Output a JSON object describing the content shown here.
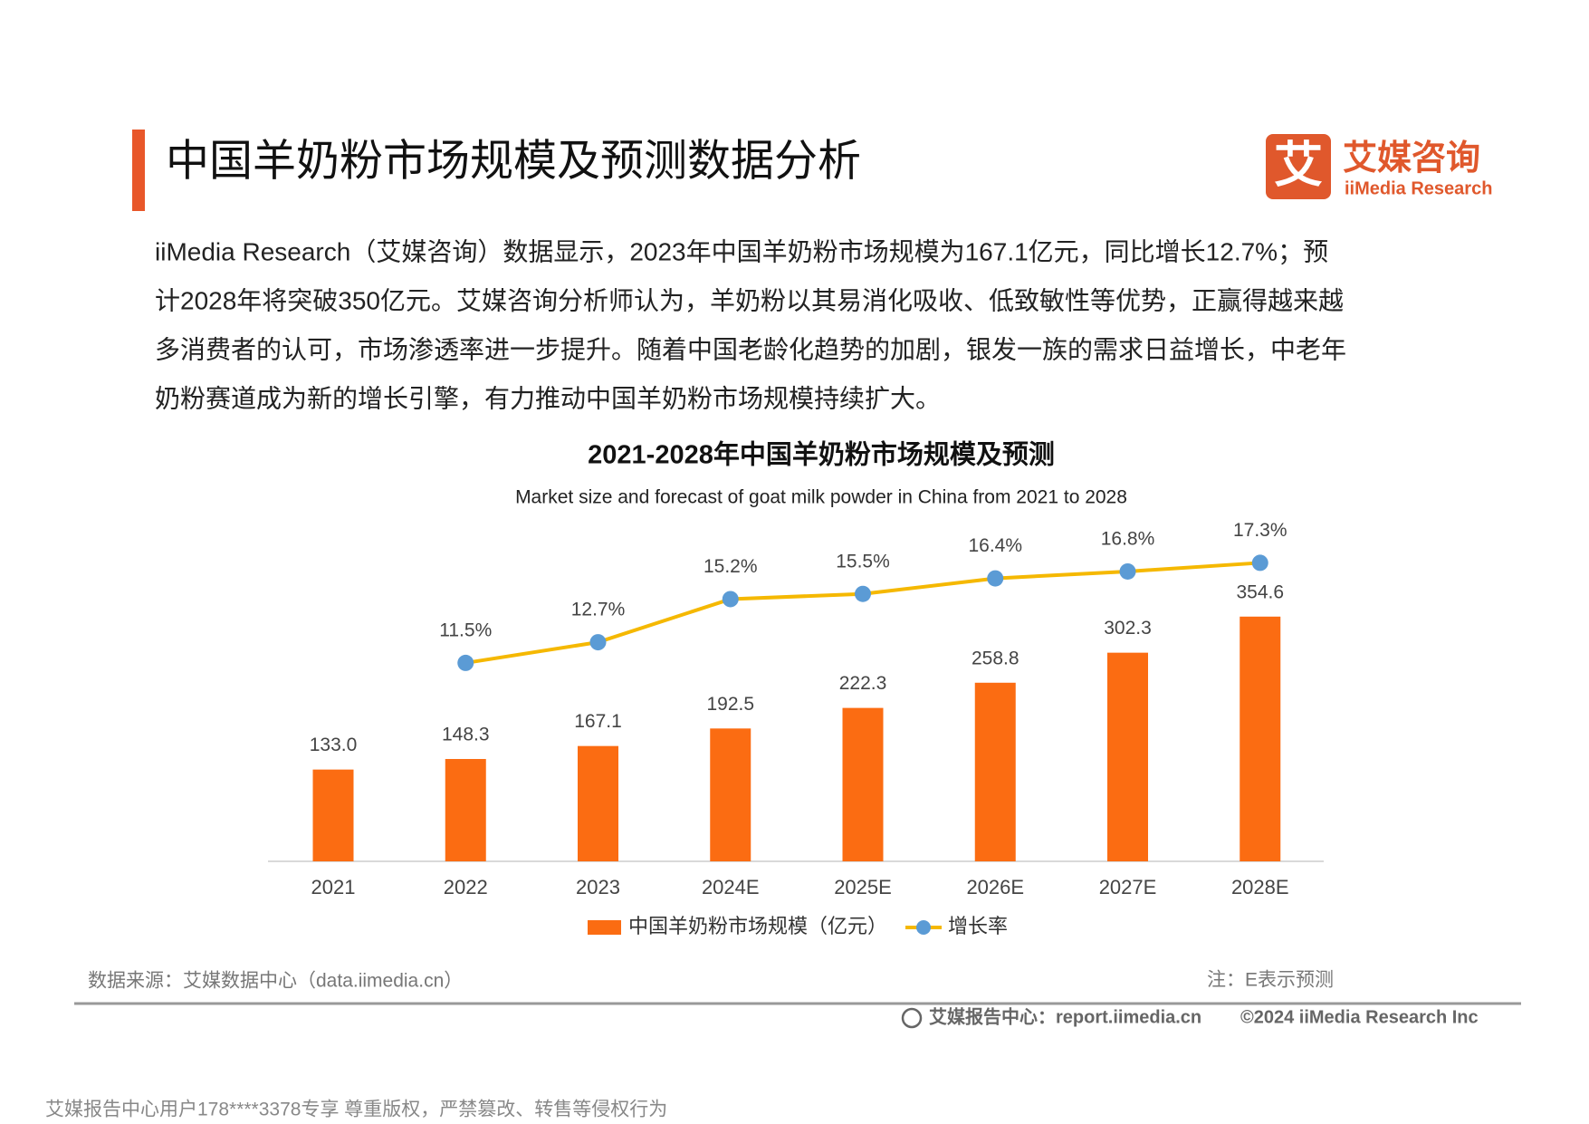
{
  "header": {
    "title": "中国羊奶粉市场规模及预测数据分析"
  },
  "logo": {
    "mark": "艾",
    "name": "艾媒咨询",
    "sub": "iiMedia Research"
  },
  "paragraph": {
    "lines": [
      "iiMedia Research（艾媒咨询）数据显示，2023年中国羊奶粉市场规模为167.1亿元，同比增长12.7%；预",
      "计2028年将突破350亿元。艾媒咨询分析师认为，羊奶粉以其易消化吸收、低致敏性等优势，正赢得越来越",
      "多消费者的认可，市场渗透率进一步提升。随着中国老龄化趋势的加剧，银发一族的需求日益增长，中老年",
      "奶粉赛道成为新的增长引擎，有力推动中国羊奶粉市场规模持续扩大。"
    ]
  },
  "chart_data": {
    "type": "bar",
    "title": "2021-2028年中国羊奶粉市场规模及预测",
    "subtitle": "Market size and forecast of goat milk powder in China from 2021 to 2028",
    "categories": [
      "2021",
      "2022",
      "2023",
      "2024E",
      "2025E",
      "2026E",
      "2027E",
      "2028E"
    ],
    "ylim": [
      0,
      500
    ],
    "y2lim": [
      0,
      20
    ],
    "series": [
      {
        "name": "中国羊奶粉市场规模（亿元）",
        "type": "bar",
        "color": "#fb6c12",
        "values": [
          133.0,
          148.3,
          167.1,
          192.5,
          222.3,
          258.8,
          302.3,
          354.6
        ],
        "value_labels": [
          "133.0",
          "148.3",
          "167.1",
          "192.5",
          "222.3",
          "258.8",
          "302.3",
          "354.6"
        ]
      },
      {
        "name": "增长率",
        "type": "line",
        "axis": "y2",
        "color": "#f5b800",
        "marker_color": "#5b9bd5",
        "values": [
          null,
          11.5,
          12.7,
          15.2,
          15.5,
          16.4,
          16.8,
          17.3
        ],
        "value_labels": [
          null,
          "11.5%",
          "12.7%",
          "15.2%",
          "15.5%",
          "16.4%",
          "16.8%",
          "17.3%"
        ]
      }
    ],
    "legend": "bottom"
  },
  "footer": {
    "source": "数据来源：艾媒数据中心（data.iimedia.cn）",
    "note": "注：E表示预测",
    "site": "艾媒报告中心：report.iimedia.cn",
    "copyright": "©2024  iiMedia Research  Inc",
    "watermark": "艾媒报告中心用户178****3378专享 尊重版权，严禁篡改、转售等侵权行为"
  }
}
